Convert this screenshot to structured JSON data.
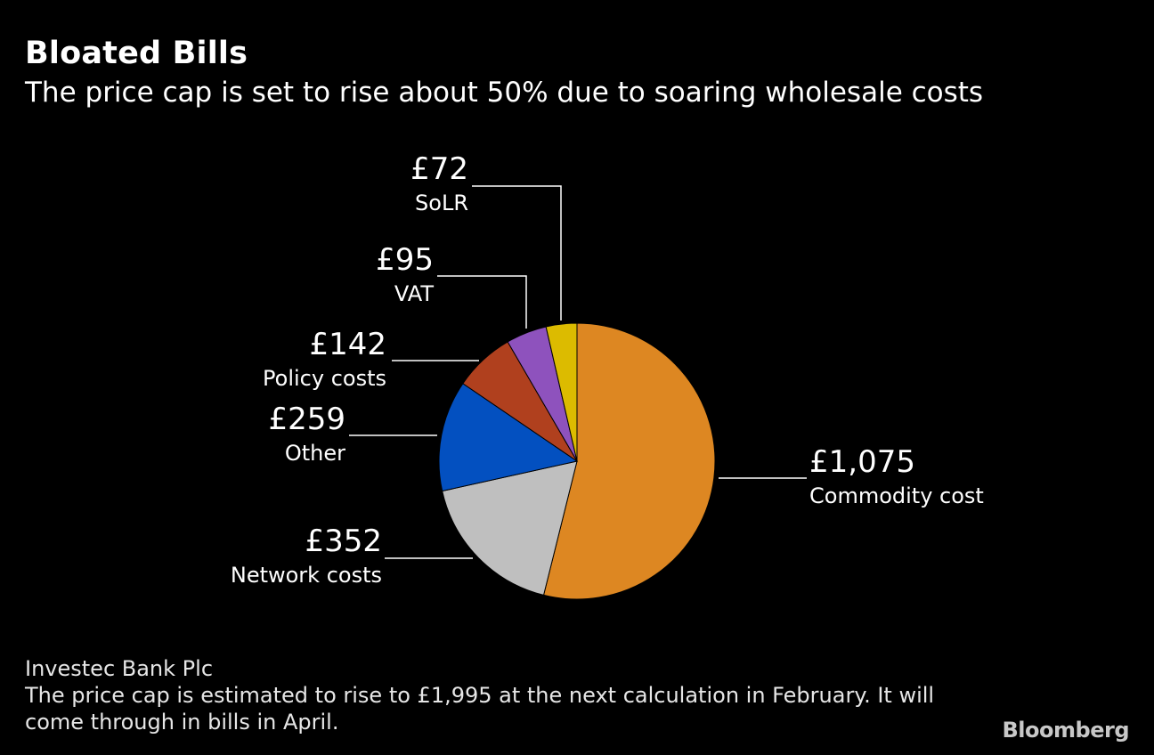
{
  "title": "Bloated Bills",
  "subtitle": "The price cap is set to rise about 50% due to soaring wholesale costs",
  "source": "Investec Bank Plc",
  "note": "The price cap is estimated to rise to £1,995 at the next calculation in February. It will come through in bills in April.",
  "brand": "Bloomberg",
  "chart_data": {
    "type": "pie",
    "title": "Bloated Bills",
    "start": "12 o'clock, clockwise",
    "slices": [
      {
        "key": "commodity",
        "label": "Commodity cost",
        "value": 1075,
        "value_label": "£1,075",
        "color": "#dd8722"
      },
      {
        "key": "network",
        "label": "Network costs",
        "value": 352,
        "value_label": "£352",
        "color": "#bfbfbf"
      },
      {
        "key": "other",
        "label": "Other",
        "value": 259,
        "value_label": "£259",
        "color": "#0350c0"
      },
      {
        "key": "policy",
        "label": "Policy costs",
        "value": 142,
        "value_label": "£142",
        "color": "#b0401e"
      },
      {
        "key": "vat",
        "label": "VAT",
        "value": 95,
        "value_label": "£95",
        "color": "#8e52bd"
      },
      {
        "key": "solr",
        "label": "SoLR",
        "value": 72,
        "value_label": "£72",
        "color": "#dcbb00"
      }
    ]
  }
}
